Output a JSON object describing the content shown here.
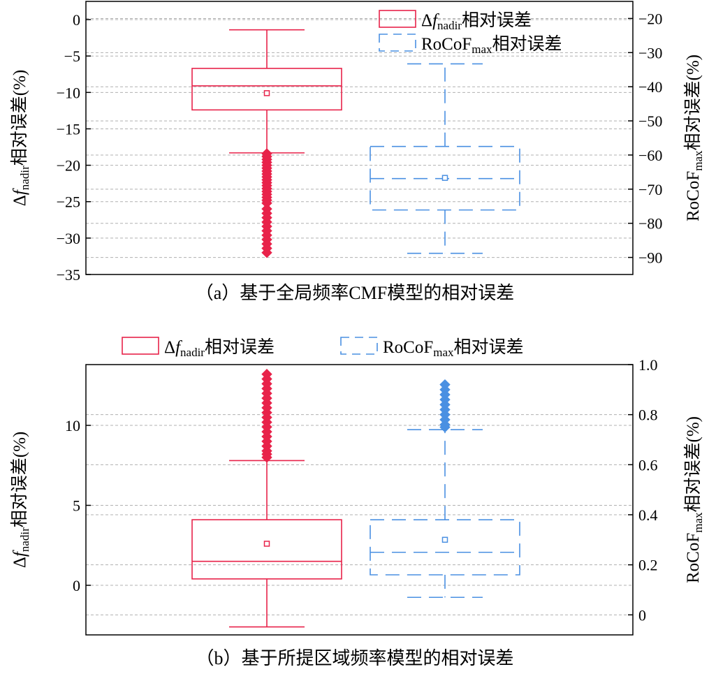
{
  "colors": {
    "red": "#e8234a",
    "blue": "#4a90e2",
    "grid": "#b0b0b0",
    "axis": "#000000"
  },
  "chart_data": [
    {
      "type": "box",
      "panel": "a",
      "caption": "（a）基于全局频率CMF模型的相对误差",
      "left_axis": {
        "label_prefix": "Δ",
        "label_var": "f",
        "label_sub": "nadir",
        "label_suffix": "相对误差(%)",
        "ylim": [
          -35,
          2.5
        ],
        "ticks": [
          0,
          -5,
          -10,
          -15,
          -20,
          -25,
          -30,
          -35
        ],
        "tick_labels": [
          "0",
          "−5",
          "−10",
          "−15",
          "−20",
          "−25",
          "−30",
          "−35"
        ]
      },
      "right_axis": {
        "label_main": "RoCoF",
        "label_sub": "max",
        "label_suffix": "相对误差(%)",
        "ylim": [
          -95,
          -15
        ],
        "ticks": [
          -20,
          -30,
          -40,
          -50,
          -60,
          -70,
          -80,
          -90
        ],
        "tick_labels": [
          "−20",
          "−30",
          "−40",
          "−50",
          "−60",
          "−70",
          "−80",
          "−90"
        ]
      },
      "grid": true,
      "legend": {
        "placement": "top-right-inside",
        "stacked": true,
        "entries": [
          {
            "prefix": "Δ",
            "var": "f",
            "sub": "nadir",
            "suffix": "相对误差",
            "style": "solid",
            "color": "red"
          },
          {
            "prefix": "",
            "var": "RoCoF",
            "sub": "max",
            "suffix": "相对误差",
            "style": "dashed",
            "color": "blue"
          }
        ]
      },
      "series": [
        {
          "name": "Δfnadir相对误差",
          "axis": "left",
          "style": "solid",
          "color": "red",
          "whisker_low": -18.3,
          "q1": -12.4,
          "median": -9.1,
          "q3": -6.7,
          "whisker_high": -1.4,
          "mean": -10.1,
          "outliers": [
            -18.4,
            -18.8,
            -19.2,
            -19.6,
            -20.0,
            -20.4,
            -20.8,
            -21.2,
            -21.6,
            -22.0,
            -22.4,
            -22.8,
            -23.2,
            -23.6,
            -24.0,
            -24.4,
            -24.8,
            -25.2,
            -26.0,
            -26.6,
            -27.2,
            -27.8,
            -28.4,
            -29.0,
            -29.6,
            -30.2,
            -30.8,
            -31.4,
            -32.0
          ]
        },
        {
          "name": "RoCoFmax相对误差",
          "axis": "right",
          "style": "dashed",
          "color": "blue",
          "whisker_low": -88.8,
          "q1": -76.1,
          "median": -66.9,
          "q3": -57.5,
          "whisker_high": -33.3,
          "mean": -66.7,
          "outliers": []
        }
      ]
    },
    {
      "type": "box",
      "panel": "b",
      "caption": "（b）基于所提区域频率模型的相对误差",
      "left_axis": {
        "label_prefix": "Δ",
        "label_var": "f",
        "label_sub": "nadir",
        "label_suffix": "相对误差(%)",
        "ylim": [
          -3.1,
          13.8
        ],
        "ticks": [
          0,
          5,
          10
        ],
        "tick_labels": [
          "0",
          "5",
          "10"
        ]
      },
      "right_axis": {
        "label_main": "RoCoF",
        "label_sub": "max",
        "label_suffix": "相对误差(%)",
        "ylim": [
          -0.08,
          1.0
        ],
        "ticks": [
          0,
          0.2,
          0.4,
          0.6,
          0.8,
          1.0
        ],
        "tick_labels": [
          "0",
          "0.2",
          "0.4",
          "0.6",
          "0.8",
          "1.0"
        ]
      },
      "grid": true,
      "legend": {
        "placement": "top-outside",
        "stacked": false,
        "entries": [
          {
            "prefix": "Δ",
            "var": "f",
            "sub": "nadir",
            "suffix": "相对误差",
            "style": "solid",
            "color": "red"
          },
          {
            "prefix": "",
            "var": "RoCoF",
            "sub": "max",
            "suffix": "相对误差",
            "style": "dashed",
            "color": "blue"
          }
        ]
      },
      "series": [
        {
          "name": "Δfnadir相对误差",
          "axis": "left",
          "style": "solid",
          "color": "red",
          "whisker_low": -2.6,
          "q1": 0.4,
          "median": 1.5,
          "q3": 4.1,
          "whisker_high": 7.8,
          "mean": 2.6,
          "outliers": [
            8.0,
            8.2,
            8.4,
            8.7,
            9.0,
            9.3,
            9.6,
            9.9,
            10.2,
            10.5,
            10.8,
            11.1,
            11.4,
            11.7,
            12.0,
            12.3,
            12.6,
            12.9,
            13.2
          ]
        },
        {
          "name": "RoCoFmax相对误差",
          "axis": "right",
          "style": "dashed",
          "color": "blue",
          "whisker_low": 0.07,
          "q1": 0.16,
          "median": 0.25,
          "q3": 0.38,
          "whisker_high": 0.74,
          "mean": 0.3,
          "outliers": [
            0.75,
            0.76,
            0.78,
            0.8,
            0.82,
            0.84,
            0.86,
            0.88,
            0.9,
            0.92
          ]
        }
      ]
    }
  ]
}
